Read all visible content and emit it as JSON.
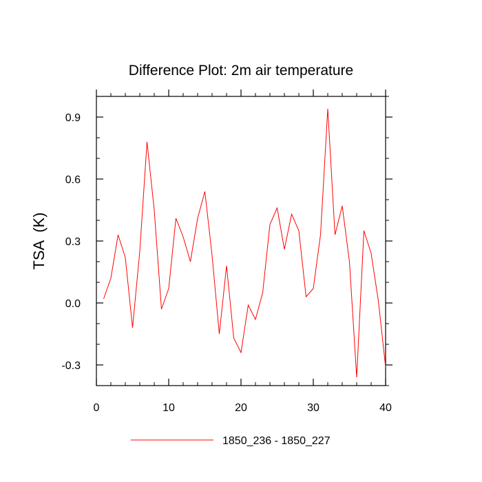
{
  "chart_data": {
    "type": "line",
    "title": "Difference Plot: 2m air temperature",
    "xlabel": "",
    "ylabel": "TSA  (K)",
    "xlim": [
      0,
      40
    ],
    "ylim": [
      -0.4,
      1.0
    ],
    "x_ticks": [
      0,
      10,
      20,
      30,
      40
    ],
    "x_tick_labels": [
      "0",
      "10",
      "20",
      "30",
      "40"
    ],
    "y_ticks": [
      -0.3,
      0.0,
      0.3,
      0.6,
      0.9
    ],
    "y_tick_labels": [
      "-0.3",
      "0.0",
      "0.3",
      "0.6",
      "0.9"
    ],
    "grid": false,
    "legend_position": "bottom",
    "series": [
      {
        "name": "1850_236 - 1850_227",
        "color": "#ff0000",
        "x": [
          1,
          2,
          3,
          4,
          5,
          6,
          7,
          8,
          9,
          10,
          11,
          12,
          13,
          14,
          15,
          16,
          17,
          18,
          19,
          20,
          21,
          22,
          23,
          24,
          25,
          26,
          27,
          28,
          29,
          30,
          31,
          32,
          33,
          34,
          35,
          36,
          37,
          38,
          39,
          40
        ],
        "values": [
          0.02,
          0.12,
          0.33,
          0.22,
          -0.12,
          0.25,
          0.78,
          0.45,
          -0.03,
          0.07,
          0.41,
          0.32,
          0.2,
          0.41,
          0.54,
          0.23,
          -0.15,
          0.18,
          -0.17,
          -0.24,
          -0.01,
          -0.08,
          0.05,
          0.38,
          0.46,
          0.26,
          0.43,
          0.35,
          0.03,
          0.07,
          0.33,
          0.94,
          0.33,
          0.47,
          0.2,
          -0.36,
          0.35,
          0.24,
          0.01,
          -0.31
        ]
      }
    ]
  }
}
